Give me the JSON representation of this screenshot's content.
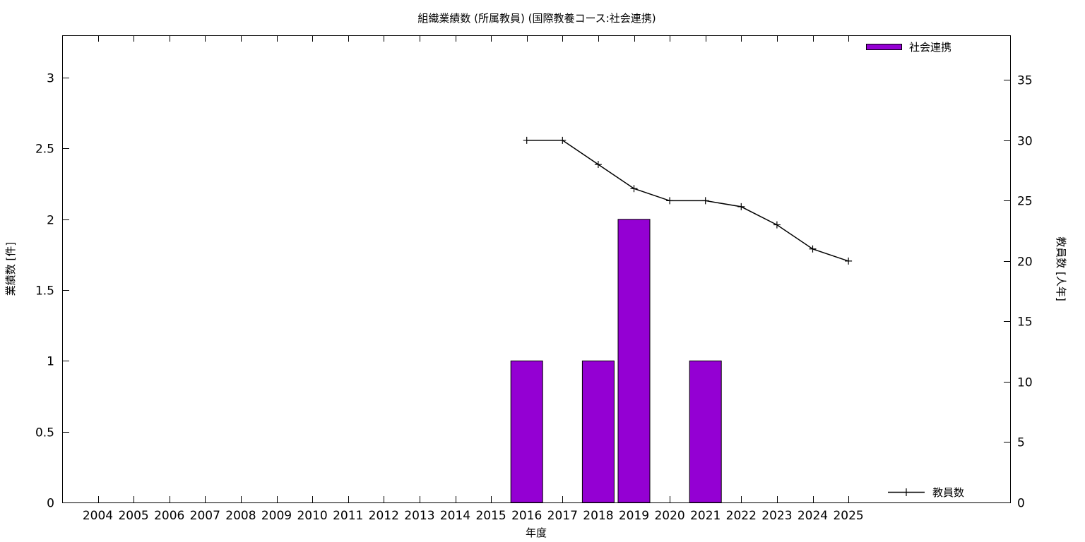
{
  "chart_data": {
    "type": "bar",
    "title": "組織業績数 (所属教員) (国際教養コース:社会連携)",
    "xlabel": "年度",
    "ylabel": "業績数 [件]",
    "y2label": "教員数 [人年]",
    "categories": [
      "2004",
      "2005",
      "2006",
      "2007",
      "2008",
      "2009",
      "2010",
      "2011",
      "2012",
      "2013",
      "2014",
      "2015",
      "2016",
      "2017",
      "2018",
      "2019",
      "2020",
      "2021",
      "2022",
      "2023",
      "2024",
      "2025"
    ],
    "ylim": [
      0,
      3.3
    ],
    "y2lim": [
      0,
      38.7
    ],
    "yticks": [
      0,
      0.5,
      1,
      1.5,
      2,
      2.5,
      3
    ],
    "ytick_labels": [
      "0",
      "0.5",
      "1",
      "1.5",
      "2",
      "2.5",
      "3"
    ],
    "y2ticks": [
      0,
      5,
      10,
      15,
      20,
      25,
      30,
      35
    ],
    "y2tick_labels": [
      "0",
      "5",
      "10",
      "15",
      "20",
      "25",
      "30",
      "35"
    ],
    "grid": false,
    "series": [
      {
        "name": "社会連携",
        "type": "bar",
        "axis": "left",
        "color": "#9400d3",
        "values": [
          0,
          0,
          0,
          0,
          0,
          0,
          0,
          0,
          0,
          0,
          0,
          0,
          1,
          0,
          1,
          2,
          0,
          1,
          0,
          0,
          0,
          0
        ]
      },
      {
        "name": "教員数",
        "type": "line",
        "axis": "right",
        "color": "#000000",
        "x": [
          "2016",
          "2017",
          "2018",
          "2019",
          "2020",
          "2021",
          "2022",
          "2023",
          "2024",
          "2025"
        ],
        "values": [
          30,
          30,
          28,
          26,
          25,
          25,
          24.5,
          23,
          21,
          20
        ]
      }
    ],
    "legend": [
      {
        "label": "社会連携",
        "position": "top-right"
      },
      {
        "label": "教員数",
        "position": "bottom-right"
      }
    ]
  }
}
